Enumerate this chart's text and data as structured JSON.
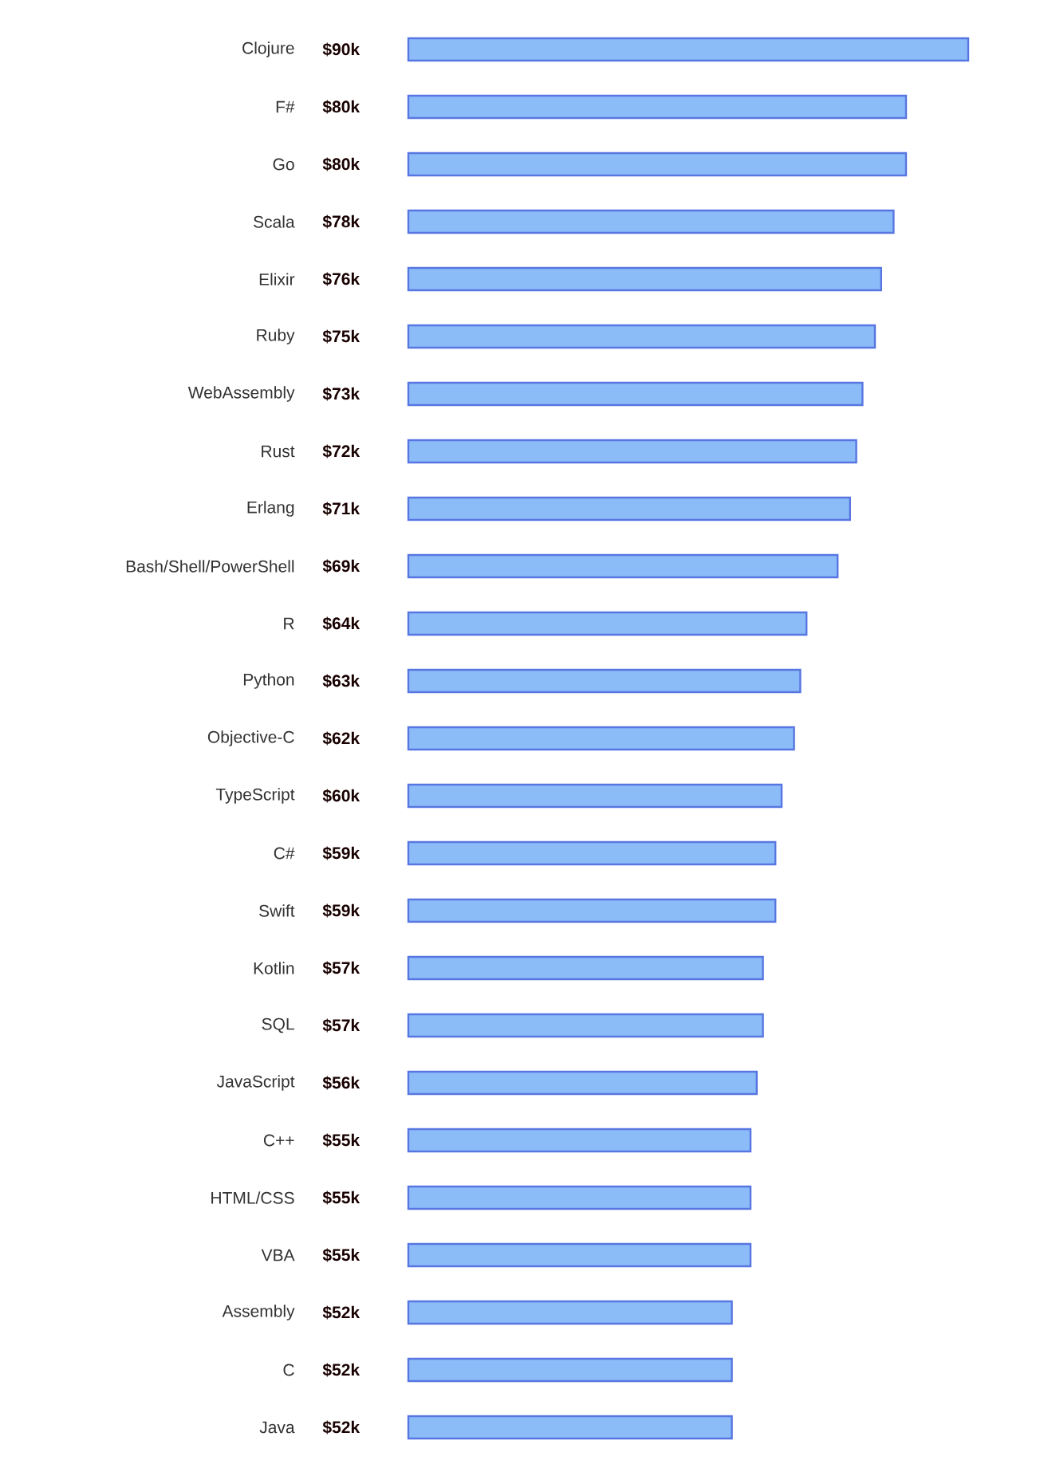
{
  "chart_data": {
    "type": "bar",
    "orientation": "horizontal",
    "color": "#8bbcf8",
    "categories": [
      "Clojure",
      "F#",
      "Go",
      "Scala",
      "Elixir",
      "Ruby",
      "WebAssembly",
      "Rust",
      "Erlang",
      "Bash/Shell/PowerShell",
      "R",
      "Python",
      "Objective-C",
      "TypeScript",
      "C#",
      "Swift",
      "Kotlin",
      "SQL",
      "JavaScript",
      "C++",
      "HTML/CSS",
      "VBA",
      "Assembly",
      "C",
      "Java"
    ],
    "values": [
      90,
      80,
      80,
      78,
      76,
      75,
      73,
      72,
      71,
      69,
      64,
      63,
      62,
      60,
      59,
      59,
      57,
      57,
      56,
      55,
      55,
      55,
      52,
      52,
      52
    ],
    "value_labels": [
      "$90k",
      "$80k",
      "$80k",
      "$78k",
      "$76k",
      "$75k",
      "$73k",
      "$72k",
      "$71k",
      "$69k",
      "$64k",
      "$63k",
      "$62k",
      "$60k",
      "$59k",
      "$59k",
      "$57k",
      "$57k",
      "$56k",
      "$55k",
      "$55k",
      "$55k",
      "$52k",
      "$52k",
      "$52k"
    ]
  }
}
